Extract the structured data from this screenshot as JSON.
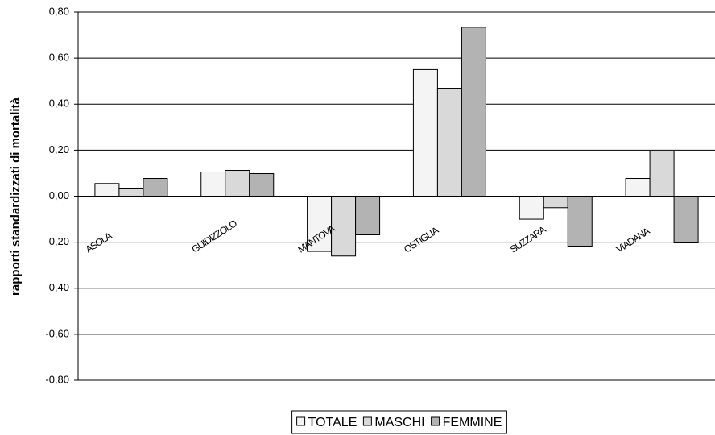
{
  "chart_data": {
    "type": "bar",
    "ylabel": "rapporti standardizzati di mortalità",
    "categories": [
      "ASOLA",
      "GUIDIZZOLO",
      "MANTOVA",
      "OSTIGLIA",
      "SUZZARA",
      "VIADANA"
    ],
    "series": [
      {
        "name": "TOTALE",
        "color": "#f4f4f4",
        "values": [
          0.055,
          0.105,
          -0.24,
          0.55,
          -0.1,
          0.077
        ]
      },
      {
        "name": "MASCHI",
        "color": "#d9d9d9",
        "values": [
          0.035,
          0.112,
          -0.26,
          0.469,
          -0.05,
          0.196
        ]
      },
      {
        "name": "FEMMINE",
        "color": "#b3b3b3",
        "values": [
          0.077,
          0.098,
          -0.168,
          0.734,
          -0.217,
          -0.203
        ]
      }
    ],
    "ylim": [
      -0.8,
      0.8
    ],
    "yticks": [
      {
        "value": -0.8,
        "label": "-0,80"
      },
      {
        "value": -0.6,
        "label": "-0,60"
      },
      {
        "value": -0.4,
        "label": "-0,40"
      },
      {
        "value": -0.2,
        "label": "-0,20"
      },
      {
        "value": 0,
        "label": "0,00"
      },
      {
        "value": 0.2,
        "label": "0,20"
      },
      {
        "value": 0.4,
        "label": "0,40"
      },
      {
        "value": 0.6,
        "label": "0,60"
      },
      {
        "value": 0.8,
        "label": "0,80"
      }
    ],
    "grid": true
  }
}
